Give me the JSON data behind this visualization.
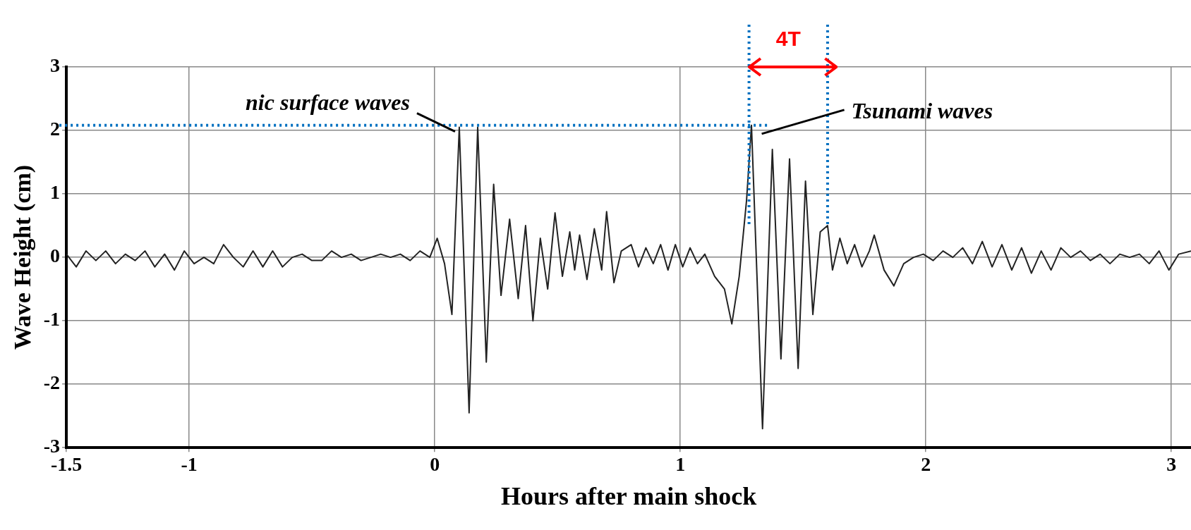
{
  "chart_data": {
    "type": "line",
    "xlabel": "Hours after main shock",
    "ylabel": "Wave Height (cm)",
    "xlim": [
      -1.5,
      3.08
    ],
    "xticks": [
      -1.5,
      -1,
      0,
      1,
      2,
      3
    ],
    "ylim": [
      -3,
      3
    ],
    "yticks": [
      -3,
      -2,
      -1,
      0,
      1,
      2,
      3
    ],
    "grid": true,
    "legend": false,
    "marker": "none",
    "line_style": "solid",
    "series": [
      {
        "color": "#222222",
        "x": [
          -1.5,
          -1.46,
          -1.42,
          -1.38,
          -1.34,
          -1.3,
          -1.26,
          -1.22,
          -1.18,
          -1.14,
          -1.1,
          -1.06,
          -1.02,
          -0.98,
          -0.94,
          -0.9,
          -0.86,
          -0.82,
          -0.78,
          -0.74,
          -0.7,
          -0.66,
          -0.62,
          -0.58,
          -0.54,
          -0.5,
          -0.46,
          -0.42,
          -0.38,
          -0.34,
          -0.3,
          -0.26,
          -0.22,
          -0.18,
          -0.14,
          -0.1,
          -0.06,
          -0.02,
          0.01,
          0.04,
          0.07,
          0.1,
          0.14,
          0.175,
          0.21,
          0.24,
          0.27,
          0.305,
          0.34,
          0.37,
          0.4,
          0.43,
          0.46,
          0.49,
          0.52,
          0.55,
          0.57,
          0.59,
          0.62,
          0.65,
          0.68,
          0.7,
          0.73,
          0.76,
          0.8,
          0.83,
          0.86,
          0.89,
          0.92,
          0.95,
          0.98,
          1.01,
          1.04,
          1.07,
          1.1,
          1.14,
          1.18,
          1.21,
          1.24,
          1.27,
          1.29,
          1.335,
          1.375,
          1.41,
          1.445,
          1.48,
          1.51,
          1.54,
          1.57,
          1.6,
          1.62,
          1.65,
          1.68,
          1.71,
          1.74,
          1.77,
          1.79,
          1.83,
          1.87,
          1.91,
          1.95,
          1.99,
          2.03,
          2.07,
          2.11,
          2.15,
          2.19,
          2.23,
          2.27,
          2.31,
          2.35,
          2.39,
          2.43,
          2.47,
          2.51,
          2.55,
          2.59,
          2.63,
          2.67,
          2.71,
          2.75,
          2.79,
          2.83,
          2.87,
          2.91,
          2.95,
          2.99,
          3.03,
          3.08
        ],
        "values": [
          0.05,
          -0.15,
          0.1,
          -0.05,
          0.1,
          -0.1,
          0.05,
          -0.05,
          0.1,
          -0.15,
          0.05,
          -0.2,
          0.1,
          -0.1,
          0.0,
          -0.1,
          0.2,
          0.0,
          -0.15,
          0.1,
          -0.15,
          0.1,
          -0.15,
          0.0,
          0.05,
          -0.05,
          -0.05,
          0.1,
          0.0,
          0.05,
          -0.05,
          0.0,
          0.05,
          0.0,
          0.05,
          -0.05,
          0.1,
          0.0,
          0.3,
          -0.1,
          -0.9,
          2.05,
          -2.45,
          2.05,
          -1.65,
          1.15,
          -0.6,
          0.6,
          -0.65,
          0.5,
          -1.0,
          0.3,
          -0.5,
          0.7,
          -0.3,
          0.4,
          -0.2,
          0.35,
          -0.35,
          0.45,
          -0.2,
          0.72,
          -0.4,
          0.1,
          0.2,
          -0.15,
          0.15,
          -0.1,
          0.2,
          -0.2,
          0.2,
          -0.15,
          0.15,
          -0.1,
          0.05,
          -0.3,
          -0.5,
          -1.05,
          -0.3,
          0.9,
          2.08,
          -2.7,
          1.7,
          -1.6,
          1.55,
          -1.75,
          1.2,
          -0.9,
          0.4,
          0.5,
          -0.2,
          0.3,
          -0.1,
          0.2,
          -0.15,
          0.1,
          0.35,
          -0.2,
          -0.45,
          -0.1,
          0.0,
          0.05,
          -0.05,
          0.1,
          0.0,
          0.15,
          -0.1,
          0.25,
          -0.15,
          0.2,
          -0.2,
          0.15,
          -0.25,
          0.1,
          -0.2,
          0.15,
          0.0,
          0.1,
          -0.05,
          0.05,
          -0.1,
          0.05,
          0.0,
          0.05,
          -0.1,
          0.1,
          -0.2,
          0.05,
          0.1
        ]
      }
    ],
    "ref_lines": [
      {
        "axis": "y",
        "value": 2.08,
        "color": "#0070c0",
        "line_style": "dotted"
      },
      {
        "axis": "x",
        "value": 1.28,
        "color": "#0070c0",
        "line_style": "dotted"
      },
      {
        "axis": "x",
        "value": 1.6,
        "color": "#0070c0",
        "line_style": "dotted"
      }
    ],
    "annotations": [
      {
        "text": "nic surface waves",
        "x": 0.1,
        "y": 2.05
      },
      "Tsunami waves",
      "4T"
    ]
  }
}
